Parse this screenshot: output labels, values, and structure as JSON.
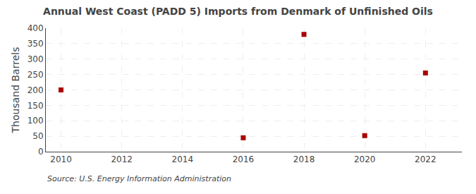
{
  "chart_data": {
    "type": "scatter",
    "title": "Annual West Coast (PADD 5) Imports from Denmark of Unfinished Oils",
    "ylabel": "Thousand Barrels",
    "annotations": [
      "Source: U.S. Energy Information Administration"
    ],
    "x": [
      2010,
      2016,
      2018,
      2020,
      2022
    ],
    "values": [
      200,
      45,
      380,
      52,
      255
    ],
    "color": "#aa0000",
    "marker": "square",
    "xlim": [
      2009.5,
      2023.2
    ],
    "ylim": [
      0,
      400
    ],
    "xticks": [
      2010,
      2012,
      2014,
      2016,
      2018,
      2020,
      2022
    ],
    "yticks": [
      0,
      50,
      100,
      150,
      200,
      250,
      300,
      350,
      400
    ],
    "grid": true
  }
}
